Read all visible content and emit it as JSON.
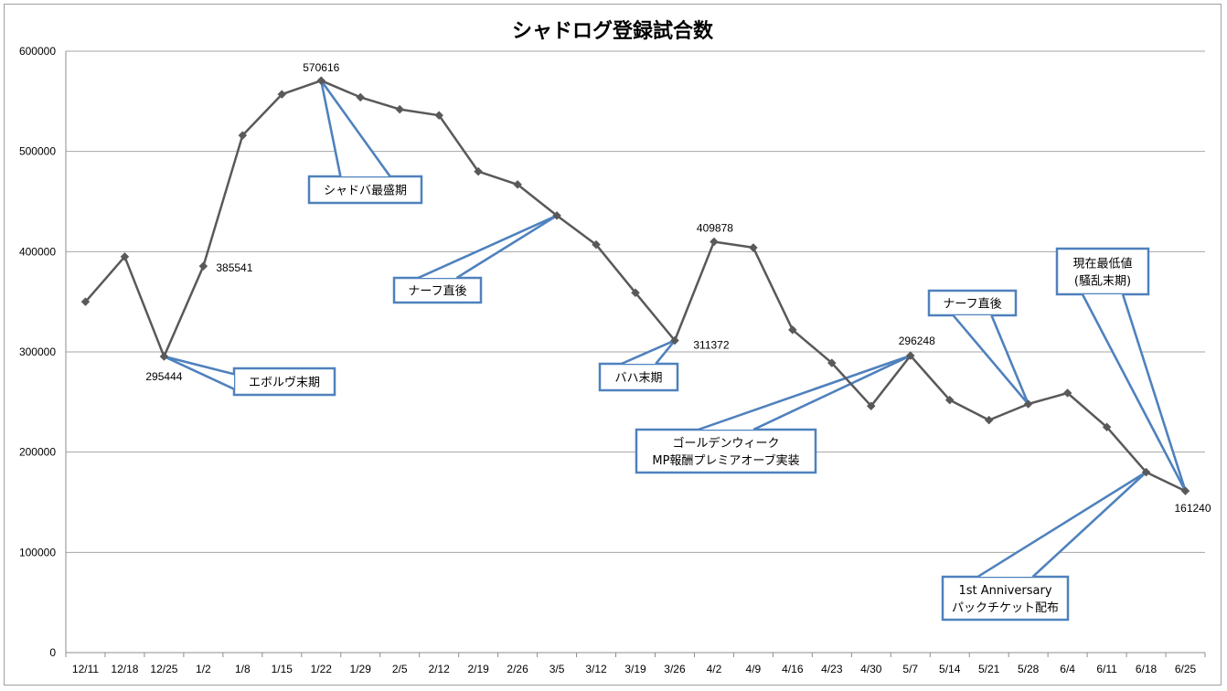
{
  "chart_data": {
    "type": "line",
    "title": "シャドログ登録試合数",
    "xlabel": "",
    "ylabel": "",
    "ylim": [
      0,
      600000
    ],
    "yticks": [
      "0",
      "100000",
      "200000",
      "300000",
      "400000",
      "500000",
      "600000"
    ],
    "grid": true,
    "legend": "none",
    "categories": [
      "12/11",
      "12/18",
      "12/25",
      "1/2",
      "1/8",
      "1/15",
      "1/22",
      "1/29",
      "2/5",
      "2/12",
      "2/19",
      "2/26",
      "3/5",
      "3/12",
      "3/19",
      "3/26",
      "4/2",
      "4/9",
      "4/16",
      "4/23",
      "4/30",
      "5/7",
      "5/14",
      "5/21",
      "5/28",
      "6/4",
      "6/11",
      "6/18",
      "6/25"
    ],
    "series": [
      {
        "values": [
          350000,
          395000,
          295444,
          385541,
          516000,
          557000,
          570616,
          554000,
          542000,
          536000,
          480000,
          467000,
          436000,
          407000,
          359000,
          311372,
          409878,
          404000,
          322000,
          289000,
          246000,
          296248,
          252000,
          232000,
          248000,
          259000,
          225000,
          180000,
          161240
        ],
        "color": "#595959"
      }
    ],
    "data_labels": [
      {
        "index": 2,
        "text": "295444"
      },
      {
        "index": 3,
        "text": "385541"
      },
      {
        "index": 6,
        "text": "570616"
      },
      {
        "index": 15,
        "text": "311372"
      },
      {
        "index": 16,
        "text": "409878"
      },
      {
        "index": 21,
        "text": "296248"
      },
      {
        "index": 28,
        "text": "161240"
      }
    ],
    "annotations": [
      {
        "target": 2,
        "lines": [
          "エボルヴ末期"
        ]
      },
      {
        "target": 6,
        "lines": [
          "シャドバ最盛期"
        ]
      },
      {
        "target": 12,
        "lines": [
          "ナーフ直後"
        ]
      },
      {
        "target": 15,
        "lines": [
          "バハ末期"
        ]
      },
      {
        "target": 21,
        "lines": [
          "ゴールデンウィーク",
          "MP報酬プレミアオーブ実装"
        ]
      },
      {
        "target": 24,
        "lines": [
          "ナーフ直後"
        ]
      },
      {
        "target": 27,
        "lines": [
          "1st Anniversary",
          "パックチケット配布"
        ]
      },
      {
        "target": 28,
        "lines": [
          "現在最低値",
          "(騒乱末期)"
        ]
      }
    ],
    "colors": {
      "line": "#595959",
      "marker": "#595959",
      "grid": "#a6a6a6",
      "callout_border": "#4f81bd"
    }
  }
}
